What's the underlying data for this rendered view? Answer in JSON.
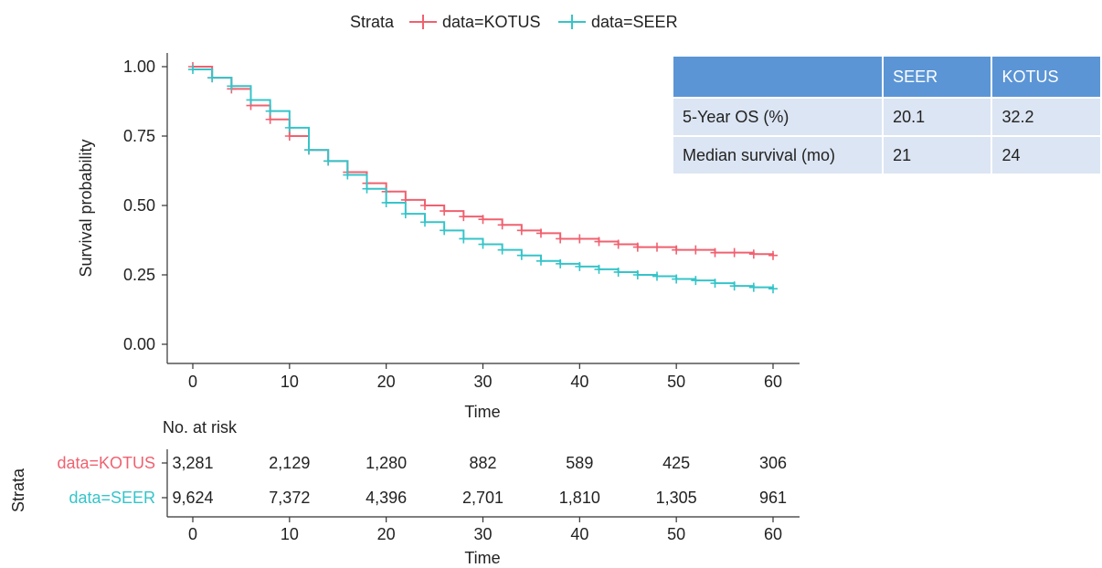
{
  "chart_data": {
    "type": "line",
    "legend": {
      "title": "Strata",
      "position": "top"
    },
    "xlabel": "Time",
    "ylabel": "Survival probability",
    "xlim": [
      0,
      60
    ],
    "ylim": [
      0,
      1
    ],
    "xticks": [
      "0",
      "10",
      "20",
      "30",
      "40",
      "50",
      "60"
    ],
    "yticks": [
      "0.00",
      "0.25",
      "0.50",
      "0.75",
      "1.00"
    ],
    "grid": false,
    "series": [
      {
        "name": "data=KOTUS",
        "color": "#f0616f",
        "x": [
          0,
          2,
          4,
          6,
          8,
          10,
          12,
          14,
          16,
          18,
          20,
          22,
          24,
          26,
          28,
          30,
          32,
          34,
          36,
          38,
          40,
          42,
          44,
          46,
          48,
          50,
          52,
          54,
          56,
          58,
          60
        ],
        "y": [
          1.0,
          0.96,
          0.92,
          0.86,
          0.81,
          0.75,
          0.7,
          0.66,
          0.62,
          0.58,
          0.55,
          0.52,
          0.5,
          0.48,
          0.46,
          0.45,
          0.43,
          0.41,
          0.4,
          0.38,
          0.38,
          0.37,
          0.36,
          0.35,
          0.35,
          0.34,
          0.34,
          0.33,
          0.33,
          0.325,
          0.32
        ]
      },
      {
        "name": "data=SEER",
        "color": "#35c4c9",
        "x": [
          0,
          2,
          4,
          6,
          8,
          10,
          12,
          14,
          16,
          18,
          20,
          22,
          24,
          26,
          28,
          30,
          32,
          34,
          36,
          38,
          40,
          42,
          44,
          46,
          48,
          50,
          52,
          54,
          56,
          58,
          60
        ],
        "y": [
          0.99,
          0.96,
          0.93,
          0.88,
          0.84,
          0.78,
          0.7,
          0.66,
          0.61,
          0.56,
          0.51,
          0.47,
          0.44,
          0.41,
          0.38,
          0.36,
          0.34,
          0.32,
          0.3,
          0.29,
          0.28,
          0.27,
          0.26,
          0.25,
          0.245,
          0.235,
          0.23,
          0.22,
          0.21,
          0.205,
          0.2
        ]
      }
    ],
    "risk_table": {
      "title": "No. at risk",
      "strata_label": "Strata",
      "xlabel": "Time",
      "xticks": [
        "0",
        "10",
        "20",
        "30",
        "40",
        "50",
        "60"
      ],
      "rows": [
        {
          "name": "data=KOTUS",
          "color": "#f0616f",
          "values": [
            "3,281",
            "2,129",
            "1,280",
            "882",
            "589",
            "425",
            "306"
          ]
        },
        {
          "name": "data=SEER",
          "color": "#35c4c9",
          "values": [
            "9,624",
            "7,372",
            "4,396",
            "2,701",
            "1,810",
            "1,305",
            "961"
          ]
        }
      ]
    }
  },
  "summary_table": {
    "headers": [
      "",
      "SEER",
      "KOTUS"
    ],
    "rows": [
      [
        "5-Year OS (%)",
        "20.1",
        "32.2"
      ],
      [
        "Median survival (mo)",
        "21",
        "24"
      ]
    ],
    "header_color": "#5b95d6",
    "cell_color": "#dce5f3"
  }
}
